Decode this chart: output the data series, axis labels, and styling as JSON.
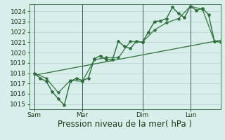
{
  "bg_color": "#d8eeea",
  "grid_color": "#b8d8d0",
  "line_color": "#2d6e3a",
  "xlabel": "Pression niveau de la mer( hPa )",
  "ylim": [
    1014.5,
    1024.7
  ],
  "yticks": [
    1015,
    1016,
    1017,
    1018,
    1019,
    1020,
    1021,
    1022,
    1023,
    1024
  ],
  "day_labels": [
    "Sam",
    "Mar",
    "Dim",
    "Lun"
  ],
  "day_positions": [
    0,
    48,
    108,
    156
  ],
  "vline_positions": [
    0,
    48,
    108,
    156
  ],
  "xlim": [
    -5,
    186
  ],
  "series1_x": [
    0,
    6,
    12,
    18,
    24,
    30,
    36,
    42,
    48,
    54,
    60,
    66,
    72,
    78,
    84,
    90,
    96,
    102,
    108,
    114,
    120,
    126,
    132,
    138,
    144,
    150,
    156,
    162,
    168,
    174,
    180,
    186
  ],
  "series1_y": [
    1018.0,
    1017.5,
    1017.2,
    1016.2,
    1015.5,
    1014.9,
    1017.2,
    1017.5,
    1017.3,
    1017.5,
    1019.4,
    1019.7,
    1019.3,
    1019.3,
    1021.1,
    1020.6,
    1020.4,
    1021.1,
    1021.0,
    1022.0,
    1023.0,
    1023.1,
    1023.3,
    1024.4,
    1023.8,
    1023.4,
    1024.5,
    1024.1,
    1024.3,
    1023.7,
    1021.1,
    1021.0
  ],
  "series2_x": [
    0,
    12,
    24,
    36,
    48,
    60,
    72,
    84,
    96,
    108,
    120,
    132,
    144,
    156,
    168,
    180
  ],
  "series2_y": [
    1018.0,
    1017.5,
    1016.1,
    1017.3,
    1017.2,
    1019.3,
    1019.5,
    1019.5,
    1021.1,
    1021.0,
    1022.2,
    1022.9,
    1023.3,
    1024.5,
    1024.2,
    1021.1
  ],
  "trend_x": [
    0,
    186
  ],
  "trend_y": [
    1017.8,
    1021.2
  ],
  "marker_size": 3.0,
  "linewidth": 1.0,
  "trend_linewidth": 0.9,
  "xlabel_fontsize": 8.5,
  "tick_fontsize": 6.5,
  "spine_color": "#336644"
}
